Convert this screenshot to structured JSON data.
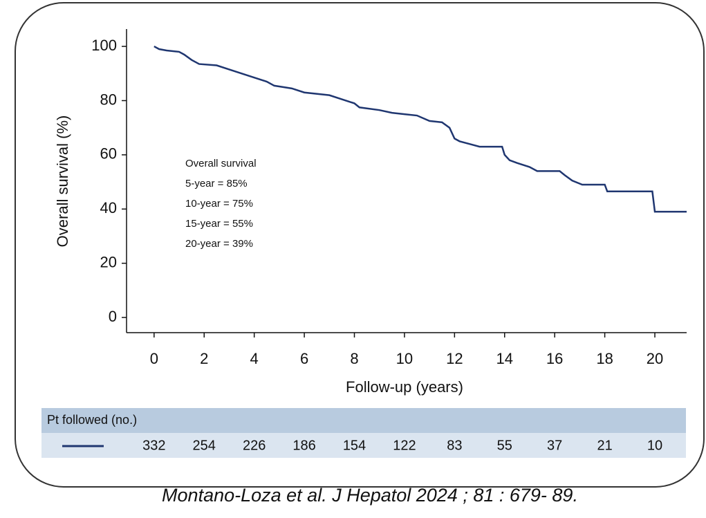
{
  "chart_data": {
    "type": "line",
    "y_label": "Overall survival (%)",
    "x_label": "Follow-up (years)",
    "annotation": [
      "Overall survival",
      "5-year = 85%",
      "10-year = 75%",
      "15-year = 55%",
      "20-year = 39%"
    ],
    "xlim": [
      -1.1,
      21.27
    ],
    "ylim": [
      -5.6,
      106.4
    ],
    "xticks": [
      0,
      2,
      4,
      6,
      8,
      10,
      12,
      14,
      16,
      18,
      20
    ],
    "yticks": [
      0,
      20,
      40,
      60,
      80,
      100
    ],
    "series": [
      {
        "color": "#1f3670",
        "x": [
          0,
          0.2,
          0.5,
          1,
          1.2,
          1.5,
          1.8,
          2.5,
          3,
          3.5,
          4,
          4.5,
          4.8,
          5.5,
          6,
          7,
          7.5,
          8,
          8.2,
          9,
          9.5,
          10,
          10.5,
          11,
          11.5,
          11.8,
          12,
          12.2,
          12.6,
          13,
          13.9,
          14,
          14.2,
          14.5,
          15,
          15.3,
          16.2,
          16.4,
          16.7,
          17.1,
          18,
          18.1,
          19.9,
          20,
          21.27
        ],
        "values": [
          100,
          99,
          98.5,
          98,
          97,
          95,
          93.5,
          93,
          91.5,
          90,
          88.5,
          87,
          85.5,
          84.5,
          83,
          82,
          80.5,
          79,
          77.5,
          76.5,
          75.5,
          75,
          74.5,
          72.5,
          72,
          70,
          66,
          65,
          64,
          63,
          63,
          60,
          58,
          57,
          55.5,
          54,
          54,
          52.5,
          50.5,
          49,
          49,
          46.5,
          46.5,
          39,
          39
        ]
      }
    ],
    "risk_table": {
      "title": "Pt followed (no.)",
      "values": [
        332,
        254,
        226,
        186,
        154,
        122,
        83,
        55,
        37,
        21,
        10
      ]
    }
  },
  "citation": "Montano-Loza et al. J Hepatol 2024 ; 81 : 679- 89."
}
